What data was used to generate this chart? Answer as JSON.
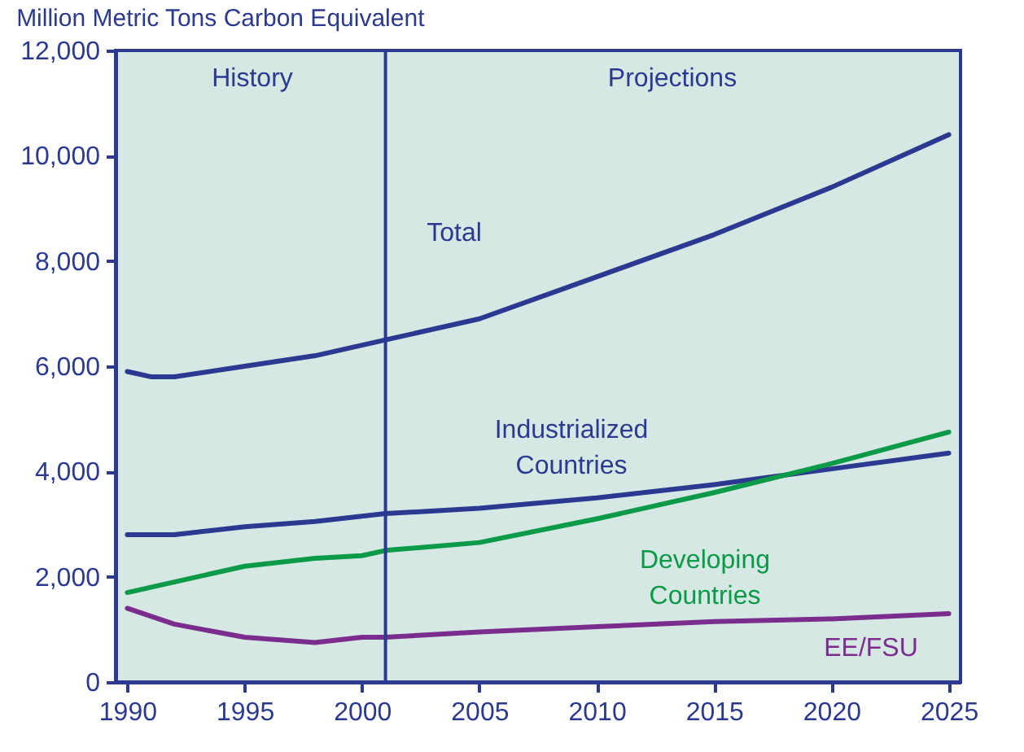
{
  "chart_data": {
    "type": "line",
    "ylabel": "Million Metric Tons Carbon Equivalent",
    "x": [
      1990,
      1991,
      1992,
      1995,
      1998,
      2000,
      2001,
      2005,
      2010,
      2015,
      2020,
      2025
    ],
    "series": [
      {
        "name": "Total",
        "color": "#2b3990",
        "values": [
          5900,
          5800,
          5800,
          6000,
          6200,
          6400,
          6500,
          6900,
          7700,
          8500,
          9400,
          10400
        ]
      },
      {
        "name": "Industrialized Countries",
        "color": "#2b3990",
        "values": [
          2800,
          2800,
          2800,
          2950,
          3050,
          3150,
          3200,
          3300,
          3500,
          3750,
          4050,
          4350
        ]
      },
      {
        "name": "Developing Countries",
        "color": "#0a9a48",
        "values": [
          1700,
          1800,
          1900,
          2200,
          2350,
          2400,
          2500,
          2650,
          3100,
          3600,
          4150,
          4750
        ]
      },
      {
        "name": "EE/FSU",
        "color": "#7b2d8e",
        "values": [
          1400,
          1250,
          1100,
          850,
          750,
          850,
          850,
          950,
          1050,
          1150,
          1200,
          1300
        ]
      }
    ],
    "xlim": [
      1989.5,
      2025.5
    ],
    "xticks": [
      1990,
      1995,
      2000,
      2005,
      2010,
      2015,
      2020,
      2025
    ],
    "ylim": [
      0,
      12000
    ],
    "yticks": [
      0,
      {
        "value": 2000,
        "label": "2,000"
      },
      {
        "value": 4000,
        "label": "4,000"
      },
      {
        "value": 6000,
        "label": "6,000"
      },
      {
        "value": 8000,
        "label": "8,000"
      },
      {
        "value": 10000,
        "label": "10,000"
      },
      {
        "value": 12000,
        "label": "12,000"
      }
    ],
    "ref_lines": [
      {
        "axis": "x",
        "value": 2001,
        "color": "#2b3990"
      }
    ],
    "annotations": [
      "History",
      "Projections"
    ],
    "grid": false,
    "marker": "none",
    "line_style": "solid"
  }
}
